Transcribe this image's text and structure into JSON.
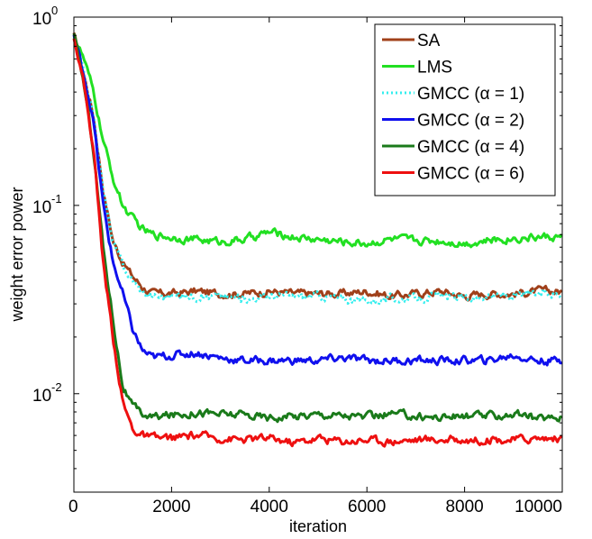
{
  "chart_data": {
    "type": "line",
    "xlabel": "iteration",
    "ylabel": "weight error power",
    "xlim": [
      0,
      10000
    ],
    "ylim": [
      0.003,
      1
    ],
    "yscale": "log",
    "grid": false,
    "legend_position": "top-right",
    "x_ticks": [
      {
        "value": 0,
        "label": "0"
      },
      {
        "value": 2000,
        "label": "2000"
      },
      {
        "value": 4000,
        "label": "4000"
      },
      {
        "value": 6000,
        "label": "6000"
      },
      {
        "value": 8000,
        "label": "8000"
      },
      {
        "value": 10000,
        "label": "10000"
      }
    ],
    "y_ticks": [
      {
        "value": 1,
        "base": "10",
        "exp": "0"
      },
      {
        "value": 0.1,
        "base": "10",
        "exp": "-1"
      },
      {
        "value": 0.01,
        "base": "10",
        "exp": "-2"
      }
    ],
    "x": [
      0,
      200,
      400,
      600,
      800,
      1000,
      1200,
      1400,
      1600,
      2000,
      2500,
      3000,
      3500,
      4000,
      4500,
      5000,
      5500,
      6000,
      6500,
      7000,
      7500,
      8000,
      8500,
      9000,
      9500,
      10000
    ],
    "series": [
      {
        "name": "SA",
        "color": "#a0401a",
        "dashed": false,
        "values": [
          0.8,
          0.5,
          0.3,
          0.12,
          0.065,
          0.05,
          0.042,
          0.037,
          0.034,
          0.034,
          0.035,
          0.034,
          0.034,
          0.035,
          0.034,
          0.034,
          0.034,
          0.035,
          0.033,
          0.034,
          0.035,
          0.033,
          0.034,
          0.034,
          0.035,
          0.035
        ]
      },
      {
        "name": "LMS",
        "color": "#22e022",
        "dashed": false,
        "values": [
          0.8,
          0.6,
          0.4,
          0.22,
          0.14,
          0.1,
          0.085,
          0.075,
          0.07,
          0.068,
          0.066,
          0.064,
          0.066,
          0.072,
          0.068,
          0.066,
          0.064,
          0.063,
          0.066,
          0.065,
          0.065,
          0.063,
          0.065,
          0.067,
          0.068,
          0.068
        ]
      },
      {
        "name": "GMCC (α = 1)",
        "color": "#33eeee",
        "dashed": true,
        "values": [
          0.8,
          0.5,
          0.3,
          0.12,
          0.063,
          0.048,
          0.04,
          0.035,
          0.033,
          0.033,
          0.033,
          0.033,
          0.032,
          0.033,
          0.033,
          0.033,
          0.032,
          0.031,
          0.032,
          0.032,
          0.033,
          0.032,
          0.033,
          0.033,
          0.034,
          0.034
        ]
      },
      {
        "name": "GMCC (α = 2)",
        "color": "#1010ee",
        "dashed": false,
        "values": [
          0.8,
          0.5,
          0.28,
          0.1,
          0.05,
          0.034,
          0.022,
          0.017,
          0.0155,
          0.016,
          0.0165,
          0.0155,
          0.015,
          0.015,
          0.015,
          0.015,
          0.0155,
          0.015,
          0.015,
          0.015,
          0.015,
          0.015,
          0.015,
          0.016,
          0.015,
          0.015
        ]
      },
      {
        "name": "GMCC (α = 4)",
        "color": "#1a7a1a",
        "dashed": false,
        "values": [
          0.8,
          0.45,
          0.2,
          0.06,
          0.025,
          0.011,
          0.0085,
          0.0078,
          0.0075,
          0.0077,
          0.008,
          0.0078,
          0.0077,
          0.0075,
          0.0076,
          0.0078,
          0.0077,
          0.0075,
          0.0078,
          0.0076,
          0.0075,
          0.0076,
          0.0076,
          0.0078,
          0.0074,
          0.0075
        ]
      },
      {
        "name": "GMCC (α = 6)",
        "color": "#ee1010",
        "dashed": false,
        "values": [
          0.8,
          0.45,
          0.2,
          0.05,
          0.02,
          0.009,
          0.0065,
          0.006,
          0.0058,
          0.0058,
          0.006,
          0.0058,
          0.0057,
          0.0058,
          0.0055,
          0.0058,
          0.0056,
          0.0057,
          0.0056,
          0.0057,
          0.0057,
          0.0057,
          0.0057,
          0.0057,
          0.0058,
          0.0058
        ]
      }
    ]
  }
}
